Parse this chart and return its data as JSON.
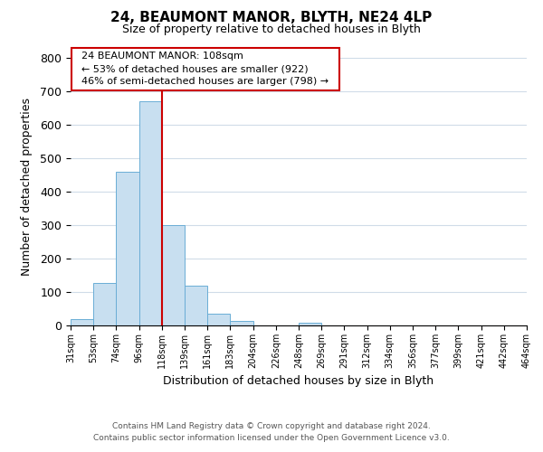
{
  "title": "24, BEAUMONT MANOR, BLYTH, NE24 4LP",
  "subtitle": "Size of property relative to detached houses in Blyth",
  "xlabel": "Distribution of detached houses by size in Blyth",
  "ylabel": "Number of detached properties",
  "bar_values": [
    18,
    128,
    460,
    670,
    300,
    118,
    35,
    13,
    0,
    0,
    8,
    0,
    0,
    0,
    0,
    0,
    0,
    0,
    0,
    0
  ],
  "bar_labels": [
    "31sqm",
    "53sqm",
    "74sqm",
    "96sqm",
    "118sqm",
    "139sqm",
    "161sqm",
    "183sqm",
    "204sqm",
    "226sqm",
    "248sqm",
    "269sqm",
    "291sqm",
    "312sqm",
    "334sqm",
    "356sqm",
    "377sqm",
    "399sqm",
    "421sqm",
    "442sqm",
    "464sqm"
  ],
  "bar_color": "#c8dff0",
  "bar_edge_color": "#6aadd5",
  "vline_x_index": 4,
  "vline_color": "#cc0000",
  "ylim": [
    0,
    830
  ],
  "yticks": [
    0,
    100,
    200,
    300,
    400,
    500,
    600,
    700,
    800
  ],
  "annotation_title": "24 BEAUMONT MANOR: 108sqm",
  "annotation_line1": "← 53% of detached houses are smaller (922)",
  "annotation_line2": "46% of semi-detached houses are larger (798) →",
  "annotation_box_color": "#ffffff",
  "annotation_box_edge": "#cc0000",
  "footer1": "Contains HM Land Registry data © Crown copyright and database right 2024.",
  "footer2": "Contains public sector information licensed under the Open Government Licence v3.0.",
  "background_color": "#ffffff",
  "grid_color": "#d0dce8"
}
